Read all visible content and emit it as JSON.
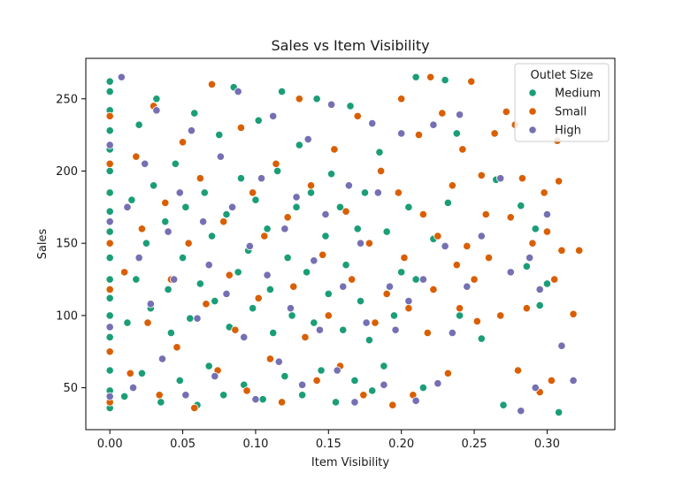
{
  "chart_data": {
    "type": "scatter",
    "title": "Sales vs Item Visibility",
    "xlabel": "Item Visibility",
    "ylabel": "Sales",
    "xlim": [
      -0.0165,
      0.3465
    ],
    "ylim": [
      21,
      278
    ],
    "xticks": [
      0.0,
      0.05,
      0.1,
      0.15,
      0.2,
      0.25,
      0.3
    ],
    "xtick_labels": [
      "0.00",
      "0.05",
      "0.10",
      "0.15",
      "0.20",
      "0.25",
      "0.30"
    ],
    "yticks": [
      50,
      100,
      150,
      200,
      250
    ],
    "ytick_labels": [
      "50",
      "100",
      "150",
      "200",
      "250"
    ],
    "grid": false,
    "legend": {
      "title": "Outlet Size",
      "position": "top-right",
      "entries": [
        "Medium",
        "Small",
        "High"
      ]
    },
    "series": [
      {
        "name": "Medium",
        "color": "#1b9e77",
        "points": [
          [
            0.0,
            36
          ],
          [
            0.0,
            48
          ],
          [
            0.0,
            62
          ],
          [
            0.0,
            85
          ],
          [
            0.0,
            100
          ],
          [
            0.0,
            112
          ],
          [
            0.0,
            125
          ],
          [
            0.0,
            140
          ],
          [
            0.0,
            158
          ],
          [
            0.0,
            172
          ],
          [
            0.0,
            185
          ],
          [
            0.0,
            200
          ],
          [
            0.0,
            215
          ],
          [
            0.0,
            228
          ],
          [
            0.0,
            242
          ],
          [
            0.0,
            255
          ],
          [
            0.0,
            262
          ],
          [
            0.01,
            44
          ],
          [
            0.012,
            95
          ],
          [
            0.015,
            180
          ],
          [
            0.018,
            125
          ],
          [
            0.02,
            232
          ],
          [
            0.022,
            60
          ],
          [
            0.025,
            150
          ],
          [
            0.028,
            105
          ],
          [
            0.03,
            190
          ],
          [
            0.032,
            250
          ],
          [
            0.035,
            40
          ],
          [
            0.038,
            165
          ],
          [
            0.04,
            118
          ],
          [
            0.042,
            88
          ],
          [
            0.045,
            205
          ],
          [
            0.048,
            55
          ],
          [
            0.05,
            140
          ],
          [
            0.052,
            175
          ],
          [
            0.055,
            98
          ],
          [
            0.058,
            240
          ],
          [
            0.06,
            38
          ],
          [
            0.062,
            122
          ],
          [
            0.065,
            185
          ],
          [
            0.068,
            65
          ],
          [
            0.07,
            155
          ],
          [
            0.072,
            110
          ],
          [
            0.075,
            225
          ],
          [
            0.078,
            45
          ],
          [
            0.08,
            170
          ],
          [
            0.082,
            92
          ],
          [
            0.085,
            258
          ],
          [
            0.088,
            130
          ],
          [
            0.09,
            195
          ],
          [
            0.092,
            52
          ],
          [
            0.095,
            145
          ],
          [
            0.098,
            105
          ],
          [
            0.1,
            180
          ],
          [
            0.102,
            235
          ],
          [
            0.105,
            42
          ],
          [
            0.108,
            160
          ],
          [
            0.11,
            118
          ],
          [
            0.112,
            88
          ],
          [
            0.115,
            200
          ],
          [
            0.118,
            255
          ],
          [
            0.12,
            58
          ],
          [
            0.122,
            140
          ],
          [
            0.125,
            100
          ],
          [
            0.128,
            175
          ],
          [
            0.13,
            218
          ],
          [
            0.132,
            45
          ],
          [
            0.135,
            130
          ],
          [
            0.138,
            185
          ],
          [
            0.14,
            95
          ],
          [
            0.142,
            250
          ],
          [
            0.145,
            62
          ],
          [
            0.148,
            155
          ],
          [
            0.15,
            115
          ],
          [
            0.152,
            198
          ],
          [
            0.155,
            40
          ],
          [
            0.158,
            175
          ],
          [
            0.16,
            90
          ],
          [
            0.162,
            135
          ],
          [
            0.165,
            245
          ],
          [
            0.168,
            55
          ],
          [
            0.17,
            160
          ],
          [
            0.172,
            110
          ],
          [
            0.175,
            185
          ],
          [
            0.178,
            83
          ],
          [
            0.18,
            48
          ],
          [
            0.185,
            213
          ],
          [
            0.188,
            65
          ],
          [
            0.19,
            158
          ],
          [
            0.195,
            100
          ],
          [
            0.2,
            130
          ],
          [
            0.205,
            175
          ],
          [
            0.21,
            265
          ],
          [
            0.21,
            125
          ],
          [
            0.215,
            50
          ],
          [
            0.222,
            153
          ],
          [
            0.23,
            263
          ],
          [
            0.232,
            178
          ],
          [
            0.238,
            226
          ],
          [
            0.24,
            100
          ],
          [
            0.255,
            84
          ],
          [
            0.265,
            194
          ],
          [
            0.27,
            38
          ],
          [
            0.282,
            176
          ],
          [
            0.286,
            134
          ],
          [
            0.292,
            160
          ],
          [
            0.295,
            107
          ],
          [
            0.3,
            122
          ],
          [
            0.308,
            33
          ]
        ]
      },
      {
        "name": "Small",
        "color": "#d95f02",
        "points": [
          [
            0.0,
            40
          ],
          [
            0.0,
            75
          ],
          [
            0.0,
            118
          ],
          [
            0.0,
            150
          ],
          [
            0.0,
            205
          ],
          [
            0.0,
            238
          ],
          [
            0.01,
            130
          ],
          [
            0.014,
            60
          ],
          [
            0.018,
            210
          ],
          [
            0.022,
            160
          ],
          [
            0.026,
            95
          ],
          [
            0.03,
            245
          ],
          [
            0.034,
            45
          ],
          [
            0.038,
            178
          ],
          [
            0.042,
            125
          ],
          [
            0.046,
            78
          ],
          [
            0.05,
            220
          ],
          [
            0.054,
            150
          ],
          [
            0.058,
            36
          ],
          [
            0.062,
            195
          ],
          [
            0.066,
            108
          ],
          [
            0.07,
            260
          ],
          [
            0.074,
            62
          ],
          [
            0.078,
            165
          ],
          [
            0.082,
            128
          ],
          [
            0.086,
            90
          ],
          [
            0.09,
            230
          ],
          [
            0.094,
            48
          ],
          [
            0.098,
            185
          ],
          [
            0.102,
            112
          ],
          [
            0.106,
            155
          ],
          [
            0.11,
            70
          ],
          [
            0.114,
            205
          ],
          [
            0.118,
            40
          ],
          [
            0.122,
            168
          ],
          [
            0.126,
            120
          ],
          [
            0.13,
            250
          ],
          [
            0.134,
            85
          ],
          [
            0.138,
            190
          ],
          [
            0.142,
            55
          ],
          [
            0.146,
            142
          ],
          [
            0.15,
            100
          ],
          [
            0.154,
            215
          ],
          [
            0.158,
            65
          ],
          [
            0.162,
            172
          ],
          [
            0.166,
            125
          ],
          [
            0.17,
            238
          ],
          [
            0.174,
            45
          ],
          [
            0.178,
            150
          ],
          [
            0.182,
            95
          ],
          [
            0.186,
            200
          ],
          [
            0.19,
            115
          ],
          [
            0.194,
            38
          ],
          [
            0.198,
            185
          ],
          [
            0.2,
            250
          ],
          [
            0.202,
            140
          ],
          [
            0.205,
            105
          ],
          [
            0.208,
            45
          ],
          [
            0.212,
            225
          ],
          [
            0.215,
            170
          ],
          [
            0.218,
            88
          ],
          [
            0.22,
            265
          ],
          [
            0.222,
            118
          ],
          [
            0.225,
            155
          ],
          [
            0.228,
            240
          ],
          [
            0.232,
            60
          ],
          [
            0.235,
            190
          ],
          [
            0.238,
            135
          ],
          [
            0.24,
            105
          ],
          [
            0.242,
            215
          ],
          [
            0.245,
            148
          ],
          [
            0.248,
            262
          ],
          [
            0.25,
            125
          ],
          [
            0.252,
            96
          ],
          [
            0.255,
            197
          ],
          [
            0.258,
            170
          ],
          [
            0.26,
            140
          ],
          [
            0.264,
            226
          ],
          [
            0.268,
            100
          ],
          [
            0.272,
            241
          ],
          [
            0.275,
            168
          ],
          [
            0.278,
            232
          ],
          [
            0.28,
            62
          ],
          [
            0.283,
            195
          ],
          [
            0.286,
            105
          ],
          [
            0.29,
            150
          ],
          [
            0.295,
            47
          ],
          [
            0.298,
            185
          ],
          [
            0.3,
            158
          ],
          [
            0.303,
            55
          ],
          [
            0.305,
            125
          ],
          [
            0.307,
            221
          ],
          [
            0.308,
            193
          ],
          [
            0.31,
            145
          ],
          [
            0.318,
            101
          ],
          [
            0.322,
            145
          ]
        ]
      },
      {
        "name": "High",
        "color": "#7570b3",
        "points": [
          [
            0.0,
            44
          ],
          [
            0.0,
            92
          ],
          [
            0.0,
            165
          ],
          [
            0.0,
            218
          ],
          [
            0.008,
            265
          ],
          [
            0.012,
            175
          ],
          [
            0.016,
            50
          ],
          [
            0.02,
            140
          ],
          [
            0.024,
            205
          ],
          [
            0.028,
            108
          ],
          [
            0.032,
            242
          ],
          [
            0.036,
            70
          ],
          [
            0.04,
            158
          ],
          [
            0.044,
            125
          ],
          [
            0.048,
            185
          ],
          [
            0.052,
            45
          ],
          [
            0.056,
            228
          ],
          [
            0.06,
            98
          ],
          [
            0.064,
            165
          ],
          [
            0.068,
            135
          ],
          [
            0.072,
            58
          ],
          [
            0.076,
            210
          ],
          [
            0.08,
            115
          ],
          [
            0.084,
            175
          ],
          [
            0.088,
            255
          ],
          [
            0.092,
            85
          ],
          [
            0.096,
            148
          ],
          [
            0.1,
            42
          ],
          [
            0.104,
            195
          ],
          [
            0.108,
            128
          ],
          [
            0.112,
            238
          ],
          [
            0.116,
            68
          ],
          [
            0.12,
            160
          ],
          [
            0.124,
            105
          ],
          [
            0.128,
            182
          ],
          [
            0.132,
            52
          ],
          [
            0.136,
            222
          ],
          [
            0.14,
            138
          ],
          [
            0.144,
            90
          ],
          [
            0.148,
            170
          ],
          [
            0.152,
            246
          ],
          [
            0.156,
            62
          ],
          [
            0.16,
            120
          ],
          [
            0.164,
            190
          ],
          [
            0.168,
            40
          ],
          [
            0.172,
            150
          ],
          [
            0.176,
            95
          ],
          [
            0.18,
            233
          ],
          [
            0.184,
            185
          ],
          [
            0.188,
            52
          ],
          [
            0.192,
            120
          ],
          [
            0.196,
            90
          ],
          [
            0.2,
            226
          ],
          [
            0.205,
            110
          ],
          [
            0.21,
            41
          ],
          [
            0.215,
            125
          ],
          [
            0.222,
            232
          ],
          [
            0.225,
            53
          ],
          [
            0.23,
            148
          ],
          [
            0.235,
            88
          ],
          [
            0.24,
            239
          ],
          [
            0.245,
            120
          ],
          [
            0.255,
            155
          ],
          [
            0.268,
            195
          ],
          [
            0.275,
            130
          ],
          [
            0.282,
            34
          ],
          [
            0.288,
            140
          ],
          [
            0.292,
            50
          ],
          [
            0.295,
            118
          ],
          [
            0.3,
            170
          ],
          [
            0.31,
            79
          ],
          [
            0.318,
            55
          ]
        ]
      }
    ]
  }
}
